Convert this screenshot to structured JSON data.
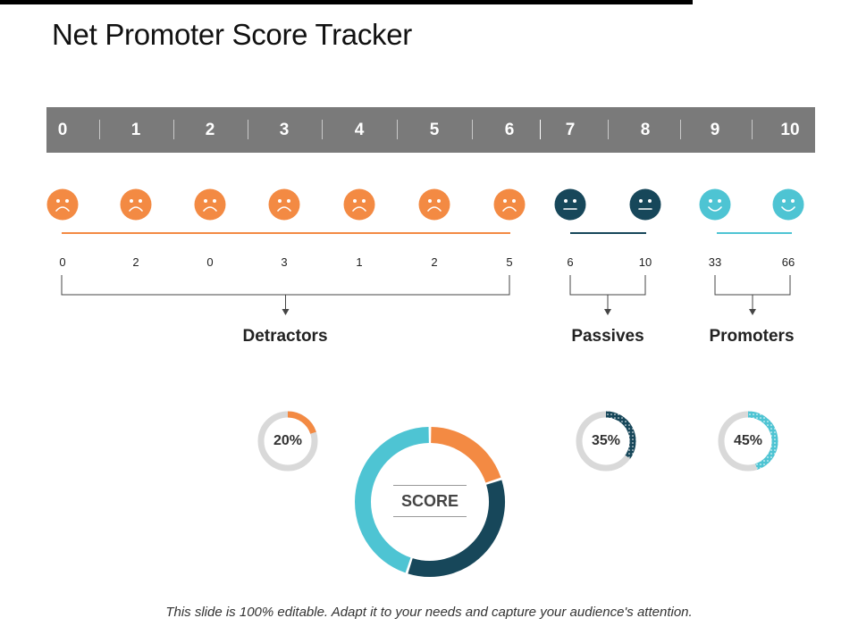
{
  "title": "Net Promoter Score Tracker",
  "scale": [
    "0",
    "1",
    "2",
    "3",
    "4",
    "5",
    "6",
    "7",
    "8",
    "9",
    "10"
  ],
  "counts": [
    "0",
    "2",
    "0",
    "3",
    "1",
    "2",
    "5",
    "6",
    "10",
    "33",
    "66"
  ],
  "faces": [
    "sad",
    "sad",
    "sad",
    "sad",
    "sad",
    "sad",
    "sad",
    "neutral",
    "neutral",
    "happy",
    "happy"
  ],
  "categories": {
    "detractors": "Detractors",
    "passives": "Passives",
    "promoters": "Promoters"
  },
  "percentages": {
    "detractors": "20%",
    "passives": "35%",
    "promoters": "45%"
  },
  "shares": {
    "detractors": 0.2,
    "passives": 0.35,
    "promoters": 0.45
  },
  "score_label": "SCORE",
  "footer": "This slide is 100% editable. Adapt it to your needs and capture your audience's attention.",
  "colors": {
    "detractor": "#f38a43",
    "passive": "#17475a",
    "promoter": "#4ec4d3",
    "scale_bg": "#7a7a7a",
    "track": "#d9d9d9"
  }
}
